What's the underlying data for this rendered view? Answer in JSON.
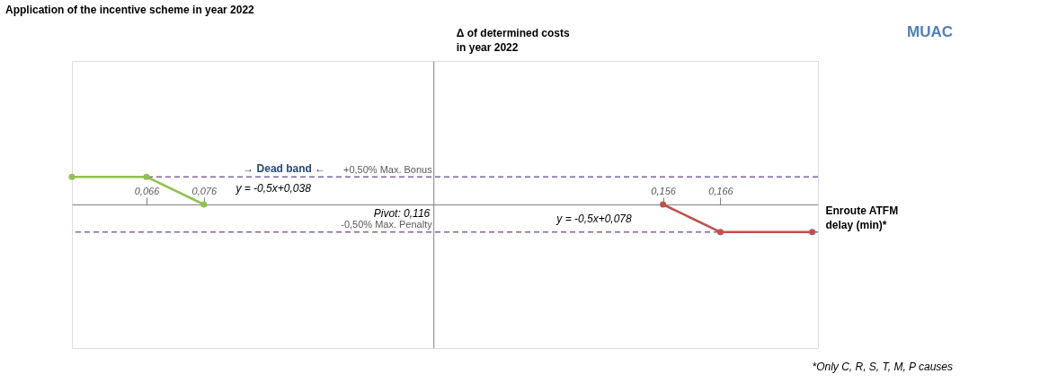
{
  "chart_data": {
    "type": "line",
    "title": "Application of the incentive scheme in year 2022",
    "xlabel": "Enroute ATFM delay (min)*",
    "ylabel": "Δ of determined costs in year 2022",
    "xlim": [
      0.053,
      0.183
    ],
    "ylim": [
      -2.6,
      2.6
    ],
    "xticks": [
      {
        "value": 0.066,
        "label": "0,066"
      },
      {
        "value": 0.076,
        "label": "0,076"
      },
      {
        "value": 0.156,
        "label": "0,156"
      },
      {
        "value": 0.166,
        "label": "0,166"
      }
    ],
    "yticks": [
      {
        "value": 0.5,
        "label": "+0,50% Max. Bonus"
      },
      {
        "value": -0.5,
        "label": "-0,50% Max. Penalty"
      }
    ],
    "series": [
      {
        "color": "#92c050",
        "x": [
          0.053,
          0.066,
          0.076
        ],
        "values": [
          0.5,
          0.5,
          0
        ]
      },
      {
        "color": "#c0504d",
        "x": [
          0.156,
          0.166,
          0.182
        ],
        "values": [
          0,
          -0.5,
          -0.5
        ]
      }
    ],
    "ref_lines": [
      {
        "axis": "y",
        "value": 0.5,
        "color": "#8064a2",
        "line_style": "dashed"
      },
      {
        "axis": "y",
        "value": -0.5,
        "color": "#8064a2",
        "line_style": "dashed"
      }
    ],
    "annotations": [
      "MUAC",
      "*Only C, R, S, T, M, P causes",
      {
        "text": "→ Dead band ←",
        "x": 0.09,
        "y": 0.5
      },
      "y = -0,5x+0,038",
      "y = -0,5x+0,078",
      "Pivot: 0,116"
    ],
    "marker": "circle",
    "grid": false
  }
}
